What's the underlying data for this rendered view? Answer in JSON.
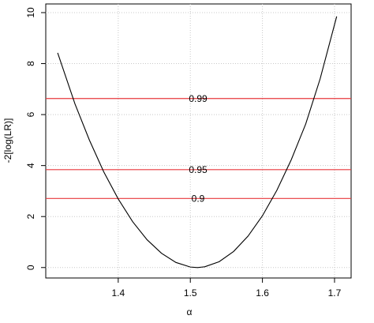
{
  "chart_data": {
    "type": "line",
    "x_label": "α",
    "y_label": "-2[log(LR)]",
    "x": [
      1.316,
      1.34,
      1.36,
      1.38,
      1.4,
      1.42,
      1.44,
      1.46,
      1.48,
      1.5,
      1.51,
      1.52,
      1.54,
      1.56,
      1.58,
      1.6,
      1.62,
      1.64,
      1.66,
      1.68,
      1.703
    ],
    "y": [
      8.42,
      6.42,
      5.0,
      3.75,
      2.69,
      1.8,
      1.09,
      0.56,
      0.2,
      0.02,
      0,
      0.03,
      0.23,
      0.63,
      1.23,
      2.03,
      3.03,
      4.23,
      5.63,
      7.4,
      9.85
    ],
    "color": "#000000",
    "reference_lines": [
      {
        "value": 6.63,
        "label": "0.99"
      },
      {
        "value": 3.84,
        "label": "0.95"
      },
      {
        "value": 2.71,
        "label": "0.9"
      }
    ],
    "reference_color": "#e8383d",
    "xlim": [
      1.2995,
      1.723
    ],
    "ylim": [
      -0.41,
      10.34
    ],
    "xticks": [
      1.4,
      1.5,
      1.6,
      1.7
    ],
    "yticks": [
      0,
      2,
      4,
      6,
      8,
      10
    ],
    "grid": true
  }
}
